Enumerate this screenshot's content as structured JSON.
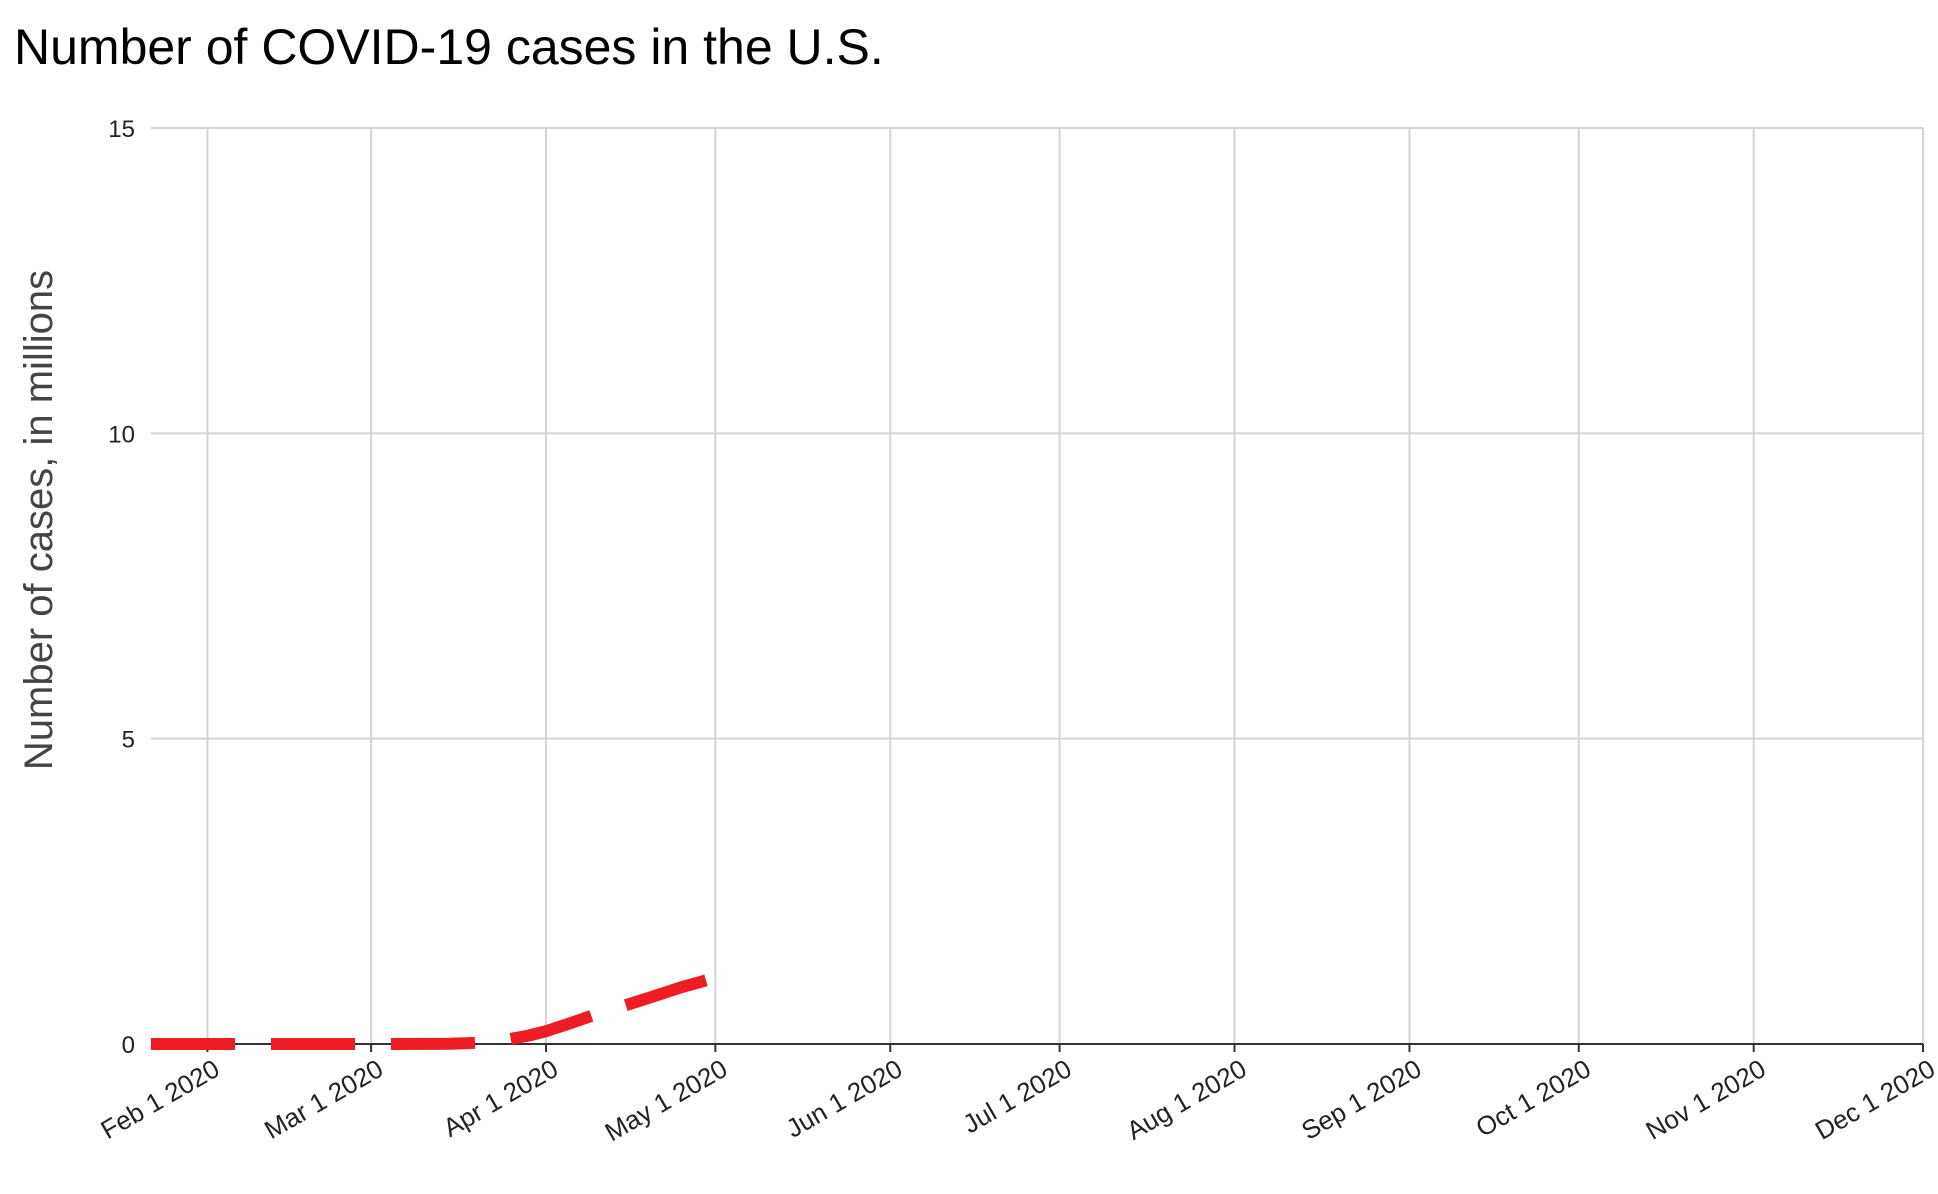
{
  "chart_data": {
    "type": "line",
    "title": "Number of COVID-19 cases in the U.S.",
    "xlabel": "",
    "ylabel": "Number of cases, in millions",
    "ylim": [
      0,
      15
    ],
    "xlim": [
      "2020-01-22",
      "2020-12-01"
    ],
    "y_ticks": [
      {
        "value": 0,
        "label": "0"
      },
      {
        "value": 5,
        "label": "5"
      },
      {
        "value": 10,
        "label": "10"
      },
      {
        "value": 15,
        "label": "15"
      }
    ],
    "x_ticks": [
      {
        "date": "2020-02-01",
        "label": "Feb 1 2020"
      },
      {
        "date": "2020-03-01",
        "label": "Mar 1 2020"
      },
      {
        "date": "2020-04-01",
        "label": "Apr 1 2020"
      },
      {
        "date": "2020-05-01",
        "label": "May 1 2020"
      },
      {
        "date": "2020-06-01",
        "label": "Jun 1 2020"
      },
      {
        "date": "2020-07-01",
        "label": "Jul 1 2020"
      },
      {
        "date": "2020-08-01",
        "label": "Aug 1 2020"
      },
      {
        "date": "2020-09-01",
        "label": "Sep 1 2020"
      },
      {
        "date": "2020-10-01",
        "label": "Oct 1 2020"
      },
      {
        "date": "2020-11-01",
        "label": "Nov 1 2020"
      },
      {
        "date": "2020-12-01",
        "label": "Dec 1 2020"
      }
    ],
    "grid": true,
    "legend": "none",
    "series": [
      {
        "color": "#ee1c25",
        "style": "dashed",
        "points": [
          {
            "x": "2020-01-22",
            "y": 0
          },
          {
            "x": "2020-02-01",
            "y": 0
          },
          {
            "x": "2020-02-15",
            "y": 0
          },
          {
            "x": "2020-03-01",
            "y": 0
          },
          {
            "x": "2020-03-10",
            "y": 0.001
          },
          {
            "x": "2020-03-15",
            "y": 0.004
          },
          {
            "x": "2020-03-20",
            "y": 0.02
          },
          {
            "x": "2020-03-25",
            "y": 0.07
          },
          {
            "x": "2020-03-29",
            "y": 0.14
          },
          {
            "x": "2020-04-01",
            "y": 0.21
          },
          {
            "x": "2020-04-05",
            "y": 0.33
          },
          {
            "x": "2020-04-10",
            "y": 0.49
          },
          {
            "x": "2020-04-15",
            "y": 0.63
          },
          {
            "x": "2020-04-20",
            "y": 0.78
          },
          {
            "x": "2020-04-25",
            "y": 0.93
          },
          {
            "x": "2020-04-30",
            "y": 1.06
          }
        ]
      }
    ]
  }
}
